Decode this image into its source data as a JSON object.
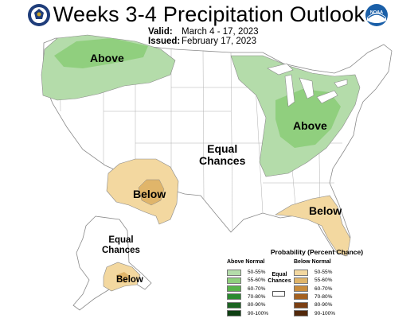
{
  "header": {
    "title": "Weeks 3-4 Precipitation Outlook",
    "valid_label": "Valid:",
    "valid_value": "March 4 - 17, 2023",
    "issued_label": "Issued:",
    "issued_value": "February 17, 2023"
  },
  "logos": {
    "left": "doc-seal-icon",
    "right": "noaa-logo-icon",
    "right_text": "NOAA"
  },
  "map_labels": {
    "nw_above": "Above",
    "ne_above": "Above",
    "sw_below": "Below",
    "se_below": "Below",
    "center_ec_line1": "Equal",
    "center_ec_line2": "Chances",
    "ak_ec_line1": "Equal",
    "ak_ec_line2": "Chances",
    "ak_below": "Below"
  },
  "legend": {
    "title": "Probability (Percent Chance)",
    "above_heading": "Above Normal",
    "below_heading": "Below Normal",
    "ec_line1": "Equal",
    "ec_line2": "Chances",
    "above": [
      {
        "range": "50-55%",
        "color": "#b4dcaa"
      },
      {
        "range": "55-60%",
        "color": "#90cf7e"
      },
      {
        "range": "60-70%",
        "color": "#57b349"
      },
      {
        "range": "70-80%",
        "color": "#2a8a2f"
      },
      {
        "range": "80-90%",
        "color": "#1c6422"
      },
      {
        "range": "90-100%",
        "color": "#0e3f12"
      }
    ],
    "below": [
      {
        "range": "50-55%",
        "color": "#f3d8a0"
      },
      {
        "range": "55-60%",
        "color": "#e0b56a"
      },
      {
        "range": "60-70%",
        "color": "#c98c3c"
      },
      {
        "range": "70-80%",
        "color": "#a4601f"
      },
      {
        "range": "80-90%",
        "color": "#7c3f12"
      },
      {
        "range": "90-100%",
        "color": "#52280a"
      }
    ]
  },
  "colors": {
    "above_50_55": "#b4dcaa",
    "above_55_60": "#90cf7e",
    "below_50_55": "#f3d8a0",
    "below_55_60": "#e0b56a",
    "border": "#8a8a8a"
  }
}
